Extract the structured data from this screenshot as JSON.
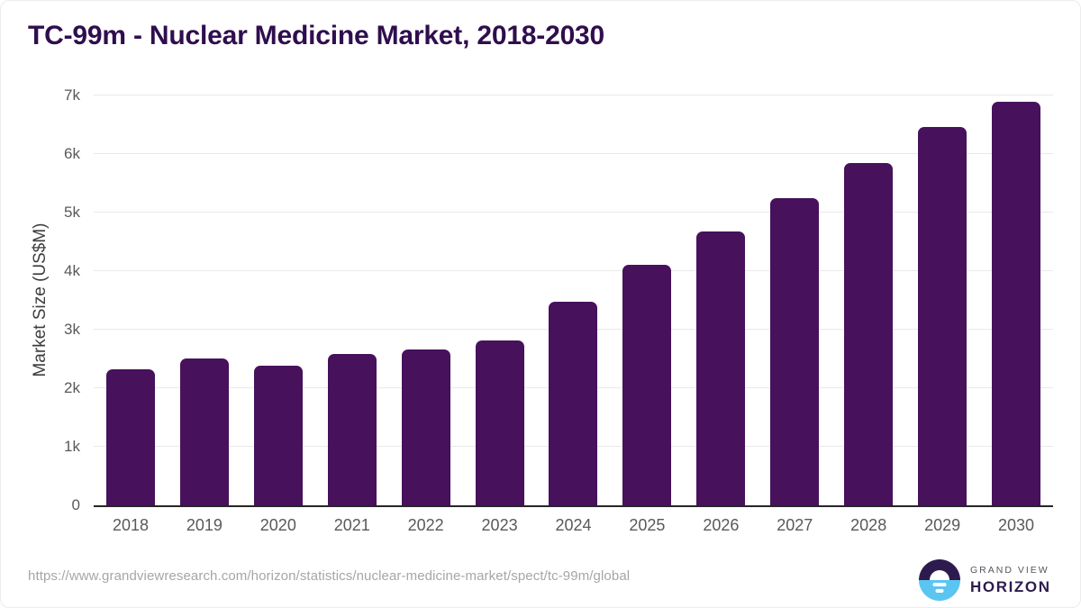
{
  "chart_data": {
    "type": "bar",
    "title": "TC-99m - Nuclear Medicine Market, 2018-2030",
    "categories": [
      "2018",
      "2019",
      "2020",
      "2021",
      "2022",
      "2023",
      "2024",
      "2025",
      "2026",
      "2027",
      "2028",
      "2029",
      "2030"
    ],
    "values": [
      2320,
      2510,
      2385,
      2585,
      2660,
      2815,
      3480,
      4110,
      4680,
      5245,
      5845,
      6460,
      6890
    ],
    "xlabel": "",
    "ylabel": "Market Size (US$M)",
    "ylim": [
      0,
      7000
    ],
    "yticks": [
      0,
      1000,
      2000,
      3000,
      4000,
      5000,
      6000,
      7000
    ],
    "ytick_labels": [
      "0",
      "1k",
      "2k",
      "3k",
      "4k",
      "5k",
      "6k",
      "7k"
    ],
    "grid": true,
    "legend": null,
    "bar_color": "#47115c"
  },
  "footer": {
    "source_url": "https://www.grandviewresearch.com/horizon/statistics/nuclear-medicine-market/spect/tc-99m/global",
    "brand": {
      "line1": "GRAND VIEW",
      "line2": "HORIZON",
      "icon": "sunrise-horizon-icon"
    }
  },
  "colors": {
    "bar_color": "#47115c",
    "title_color": "#2f0e4e",
    "grid_color": "#e9e9e9",
    "axis_line_color": "#262626",
    "tick_color": "#595959",
    "axis_title_color": "#3d3d3d",
    "url_color": "#a6a6a6",
    "logo_purple": "#2d1b4e",
    "logo_blue": "#5bc5f2",
    "logo_gray": "#54555c"
  }
}
